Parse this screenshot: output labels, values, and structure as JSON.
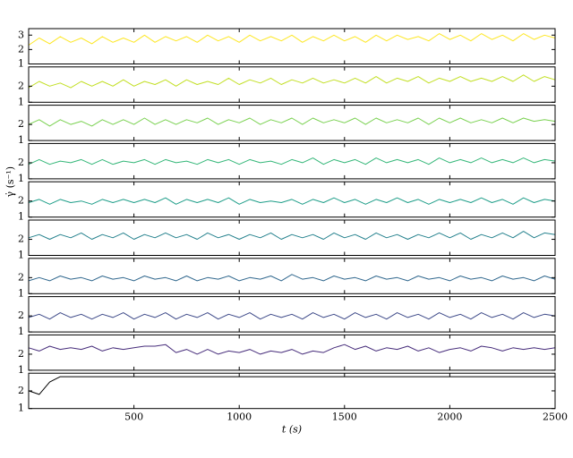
{
  "chart_data": [
    {
      "type": "line",
      "color": "#fde725",
      "xlim": [
        0,
        2500
      ],
      "ylim": [
        1,
        3.45
      ],
      "yticks": [
        1,
        2,
        3
      ],
      "x": [
        0,
        50,
        100,
        150,
        200,
        250,
        300,
        350,
        400,
        450,
        500,
        550,
        600,
        650,
        700,
        750,
        800,
        850,
        900,
        950,
        1000,
        1050,
        1100,
        1150,
        1200,
        1250,
        1300,
        1350,
        1400,
        1450,
        1500,
        1550,
        1600,
        1650,
        1700,
        1750,
        1800,
        1850,
        1900,
        1950,
        2000,
        2050,
        2100,
        2150,
        2200,
        2250,
        2300,
        2350,
        2400,
        2450,
        2500
      ],
      "values": [
        2.3,
        2.8,
        2.4,
        2.9,
        2.5,
        2.8,
        2.4,
        2.9,
        2.5,
        2.8,
        2.5,
        3.0,
        2.5,
        2.9,
        2.6,
        2.9,
        2.5,
        3.0,
        2.6,
        2.9,
        2.5,
        3.0,
        2.6,
        2.9,
        2.6,
        3.0,
        2.5,
        2.9,
        2.6,
        3.0,
        2.6,
        2.9,
        2.5,
        3.0,
        2.6,
        3.0,
        2.7,
        2.9,
        2.6,
        3.1,
        2.7,
        3.0,
        2.6,
        3.1,
        2.7,
        3.0,
        2.6,
        3.1,
        2.7,
        3.0,
        2.8
      ]
    },
    {
      "type": "line",
      "color": "#c2df23",
      "xlim": [
        0,
        2500
      ],
      "ylim": [
        1,
        3.2
      ],
      "yticks": [
        1,
        2
      ],
      "x": [
        0,
        50,
        100,
        150,
        200,
        250,
        300,
        350,
        400,
        450,
        500,
        550,
        600,
        650,
        700,
        750,
        800,
        850,
        900,
        950,
        1000,
        1050,
        1100,
        1150,
        1200,
        1250,
        1300,
        1350,
        1400,
        1450,
        1500,
        1550,
        1600,
        1650,
        1700,
        1750,
        1800,
        1850,
        1900,
        1950,
        2000,
        2050,
        2100,
        2150,
        2200,
        2250,
        2300,
        2350,
        2400,
        2450,
        2500
      ],
      "values": [
        1.9,
        2.3,
        2.0,
        2.2,
        1.9,
        2.3,
        2.0,
        2.3,
        2.0,
        2.4,
        2.0,
        2.3,
        2.1,
        2.4,
        2.0,
        2.4,
        2.1,
        2.3,
        2.1,
        2.5,
        2.1,
        2.4,
        2.2,
        2.5,
        2.1,
        2.4,
        2.2,
        2.5,
        2.2,
        2.4,
        2.2,
        2.5,
        2.2,
        2.6,
        2.2,
        2.5,
        2.3,
        2.6,
        2.2,
        2.5,
        2.3,
        2.6,
        2.3,
        2.5,
        2.3,
        2.6,
        2.3,
        2.7,
        2.3,
        2.6,
        2.4
      ]
    },
    {
      "type": "line",
      "color": "#7ad151",
      "xlim": [
        0,
        2500
      ],
      "ylim": [
        1,
        3.2
      ],
      "yticks": [
        1,
        2
      ],
      "x": [
        0,
        50,
        100,
        150,
        200,
        250,
        300,
        350,
        400,
        450,
        500,
        550,
        600,
        650,
        700,
        750,
        800,
        850,
        900,
        950,
        1000,
        1050,
        1100,
        1150,
        1200,
        1250,
        1300,
        1350,
        1400,
        1450,
        1500,
        1550,
        1600,
        1650,
        1700,
        1750,
        1800,
        1850,
        1900,
        1950,
        2000,
        2050,
        2100,
        2150,
        2200,
        2250,
        2300,
        2350,
        2400,
        2450,
        2500
      ],
      "values": [
        2.0,
        2.3,
        1.9,
        2.3,
        2.0,
        2.2,
        1.9,
        2.3,
        2.0,
        2.3,
        2.0,
        2.4,
        2.0,
        2.3,
        2.0,
        2.3,
        2.1,
        2.4,
        2.0,
        2.3,
        2.1,
        2.4,
        2.0,
        2.3,
        2.1,
        2.4,
        2.0,
        2.4,
        2.1,
        2.3,
        2.1,
        2.4,
        2.0,
        2.4,
        2.1,
        2.3,
        2.1,
        2.4,
        2.0,
        2.4,
        2.1,
        2.4,
        2.1,
        2.3,
        2.1,
        2.4,
        2.1,
        2.4,
        2.2,
        2.3,
        2.2
      ]
    },
    {
      "type": "line",
      "color": "#35b779",
      "xlim": [
        0,
        2500
      ],
      "ylim": [
        1,
        3.2
      ],
      "yticks": [
        1,
        2
      ],
      "x": [
        0,
        50,
        100,
        150,
        200,
        250,
        300,
        350,
        400,
        450,
        500,
        550,
        600,
        650,
        700,
        750,
        800,
        850,
        900,
        950,
        1000,
        1050,
        1100,
        1150,
        1200,
        1250,
        1300,
        1350,
        1400,
        1450,
        1500,
        1550,
        1600,
        1650,
        1700,
        1750,
        1800,
        1850,
        1900,
        1950,
        2000,
        2050,
        2100,
        2150,
        2200,
        2250,
        2300,
        2350,
        2400,
        2450,
        2500
      ],
      "values": [
        1.9,
        2.2,
        1.9,
        2.1,
        2.0,
        2.2,
        1.9,
        2.2,
        1.9,
        2.1,
        2.0,
        2.2,
        1.9,
        2.2,
        2.0,
        2.1,
        1.9,
        2.2,
        2.0,
        2.2,
        1.9,
        2.2,
        2.0,
        2.1,
        1.9,
        2.2,
        2.0,
        2.3,
        1.9,
        2.2,
        2.0,
        2.2,
        1.9,
        2.3,
        2.0,
        2.2,
        2.0,
        2.2,
        1.9,
        2.3,
        2.0,
        2.2,
        2.0,
        2.3,
        2.0,
        2.2,
        2.0,
        2.3,
        2.0,
        2.2,
        2.1
      ]
    },
    {
      "type": "line",
      "color": "#1f9e89",
      "xlim": [
        0,
        2500
      ],
      "ylim": [
        1,
        3.2
      ],
      "yticks": [
        1,
        2
      ],
      "ylabel": "γ̇ (s⁻¹)",
      "x": [
        0,
        50,
        100,
        150,
        200,
        250,
        300,
        350,
        400,
        450,
        500,
        550,
        600,
        650,
        700,
        750,
        800,
        850,
        900,
        950,
        1000,
        1050,
        1100,
        1150,
        1200,
        1250,
        1300,
        1350,
        1400,
        1450,
        1500,
        1550,
        1600,
        1650,
        1700,
        1750,
        1800,
        1850,
        1900,
        1950,
        2000,
        2050,
        2100,
        2150,
        2200,
        2250,
        2300,
        2350,
        2400,
        2450,
        2500
      ],
      "values": [
        1.9,
        2.1,
        1.8,
        2.1,
        1.9,
        2.0,
        1.8,
        2.1,
        1.9,
        2.1,
        1.9,
        2.1,
        1.9,
        2.2,
        1.8,
        2.1,
        1.9,
        2.1,
        1.9,
        2.2,
        1.8,
        2.1,
        1.9,
        2.0,
        1.9,
        2.1,
        1.8,
        2.1,
        1.9,
        2.2,
        1.9,
        2.1,
        1.8,
        2.1,
        1.9,
        2.2,
        1.9,
        2.1,
        1.8,
        2.1,
        1.9,
        2.1,
        1.9,
        2.2,
        1.9,
        2.1,
        1.8,
        2.2,
        1.9,
        2.1,
        2.0
      ]
    },
    {
      "type": "line",
      "color": "#26828e",
      "xlim": [
        0,
        2500
      ],
      "ylim": [
        1,
        3.2
      ],
      "yticks": [
        1,
        2
      ],
      "x": [
        0,
        50,
        100,
        150,
        200,
        250,
        300,
        350,
        400,
        450,
        500,
        550,
        600,
        650,
        700,
        750,
        800,
        850,
        900,
        950,
        1000,
        1050,
        1100,
        1150,
        1200,
        1250,
        1300,
        1350,
        1400,
        1450,
        1500,
        1550,
        1600,
        1650,
        1700,
        1750,
        1800,
        1850,
        1900,
        1950,
        2000,
        2050,
        2100,
        2150,
        2200,
        2250,
        2300,
        2350,
        2400,
        2450,
        2500
      ],
      "values": [
        2.1,
        2.3,
        2.0,
        2.3,
        2.1,
        2.4,
        2.0,
        2.3,
        2.1,
        2.4,
        2.0,
        2.3,
        2.1,
        2.4,
        2.1,
        2.3,
        2.0,
        2.4,
        2.1,
        2.3,
        2.0,
        2.3,
        2.1,
        2.4,
        2.0,
        2.3,
        2.1,
        2.3,
        2.0,
        2.4,
        2.1,
        2.3,
        2.0,
        2.4,
        2.1,
        2.3,
        2.0,
        2.3,
        2.1,
        2.4,
        2.1,
        2.4,
        2.0,
        2.3,
        2.1,
        2.4,
        2.1,
        2.5,
        2.1,
        2.4,
        2.3
      ]
    },
    {
      "type": "line",
      "color": "#31688e",
      "xlim": [
        0,
        2500
      ],
      "ylim": [
        1,
        3.2
      ],
      "yticks": [
        1,
        2
      ],
      "x": [
        0,
        50,
        100,
        150,
        200,
        250,
        300,
        350,
        400,
        450,
        500,
        550,
        600,
        650,
        700,
        750,
        800,
        850,
        900,
        950,
        1000,
        1050,
        1100,
        1150,
        1200,
        1250,
        1300,
        1350,
        1400,
        1450,
        1500,
        1550,
        1600,
        1650,
        1700,
        1750,
        1800,
        1850,
        1900,
        1950,
        2000,
        2050,
        2100,
        2150,
        2200,
        2250,
        2300,
        2350,
        2400,
        2450,
        2500
      ],
      "values": [
        1.8,
        2.0,
        1.8,
        2.1,
        1.9,
        2.0,
        1.8,
        2.1,
        1.9,
        2.0,
        1.8,
        2.1,
        1.9,
        2.0,
        1.8,
        2.1,
        1.8,
        2.0,
        1.9,
        2.1,
        1.8,
        2.0,
        1.9,
        2.1,
        1.8,
        2.2,
        1.9,
        2.0,
        1.8,
        2.1,
        1.9,
        2.0,
        1.8,
        2.1,
        1.9,
        2.0,
        1.8,
        2.1,
        1.9,
        2.0,
        1.8,
        2.1,
        1.9,
        2.0,
        1.8,
        2.1,
        1.9,
        2.0,
        1.8,
        2.1,
        1.9
      ]
    },
    {
      "type": "line",
      "color": "#3e4a89",
      "xlim": [
        0,
        2500
      ],
      "ylim": [
        1,
        3.2
      ],
      "yticks": [
        1,
        2
      ],
      "x": [
        0,
        50,
        100,
        150,
        200,
        250,
        300,
        350,
        400,
        450,
        500,
        550,
        600,
        650,
        700,
        750,
        800,
        850,
        900,
        950,
        1000,
        1050,
        1100,
        1150,
        1200,
        1250,
        1300,
        1350,
        1400,
        1450,
        1500,
        1550,
        1600,
        1650,
        1700,
        1750,
        1800,
        1850,
        1900,
        1950,
        2000,
        2050,
        2100,
        2150,
        2200,
        2250,
        2300,
        2350,
        2400,
        2450,
        2500
      ],
      "values": [
        1.9,
        2.1,
        1.8,
        2.2,
        1.9,
        2.1,
        1.8,
        2.1,
        1.9,
        2.2,
        1.8,
        2.1,
        1.9,
        2.2,
        1.8,
        2.1,
        1.9,
        2.2,
        1.8,
        2.1,
        1.9,
        2.2,
        1.8,
        2.1,
        1.9,
        2.1,
        1.8,
        2.2,
        1.9,
        2.1,
        1.8,
        2.2,
        1.9,
        2.1,
        1.8,
        2.2,
        1.9,
        2.1,
        1.8,
        2.2,
        1.9,
        2.1,
        1.8,
        2.2,
        1.9,
        2.1,
        1.8,
        2.2,
        1.9,
        2.1,
        2.0
      ]
    },
    {
      "type": "line",
      "color": "#472d7b",
      "xlim": [
        0,
        2500
      ],
      "ylim": [
        1,
        3.2
      ],
      "yticks": [
        1,
        2
      ],
      "x": [
        0,
        50,
        100,
        150,
        200,
        250,
        300,
        350,
        400,
        450,
        500,
        550,
        600,
        650,
        700,
        750,
        800,
        850,
        900,
        950,
        1000,
        1050,
        1100,
        1150,
        1200,
        1250,
        1300,
        1350,
        1400,
        1450,
        1500,
        1550,
        1600,
        1650,
        1700,
        1750,
        1800,
        1850,
        1900,
        1950,
        2000,
        2050,
        2100,
        2150,
        2200,
        2250,
        2300,
        2350,
        2400,
        2450,
        2500
      ],
      "values": [
        2.4,
        2.2,
        2.5,
        2.3,
        2.4,
        2.3,
        2.5,
        2.2,
        2.4,
        2.3,
        2.4,
        2.5,
        2.5,
        2.6,
        2.1,
        2.3,
        2.0,
        2.3,
        2.0,
        2.2,
        2.1,
        2.3,
        2.0,
        2.2,
        2.1,
        2.3,
        2.0,
        2.2,
        2.1,
        2.4,
        2.6,
        2.3,
        2.5,
        2.2,
        2.4,
        2.3,
        2.5,
        2.2,
        2.4,
        2.1,
        2.3,
        2.4,
        2.2,
        2.5,
        2.4,
        2.2,
        2.4,
        2.3,
        2.4,
        2.3,
        2.4
      ]
    },
    {
      "type": "line",
      "color": "#000000",
      "xlim": [
        0,
        2500
      ],
      "ylim": [
        1,
        3
      ],
      "yticks": [
        1,
        2
      ],
      "xticks": [
        500,
        1000,
        1500,
        2000,
        2500
      ],
      "xlabel": "t (s)",
      "x": [
        0,
        50,
        100,
        150,
        200,
        250,
        300,
        350,
        400,
        450,
        500,
        550,
        600,
        650,
        700,
        750,
        800,
        850,
        900,
        950,
        1000,
        1050,
        1100,
        1150,
        1200,
        1250,
        1300,
        1350,
        1400,
        1450,
        1500,
        1550,
        1600,
        1650,
        1700,
        1750,
        1800,
        1850,
        1900,
        1950,
        2000,
        2050,
        2100,
        2150,
        2200,
        2250,
        2300,
        2350,
        2400,
        2450,
        2500
      ],
      "values": [
        2.0,
        1.8,
        2.5,
        2.8,
        2.8,
        2.8,
        2.8,
        2.8,
        2.8,
        2.8,
        2.8,
        2.8,
        2.8,
        2.8,
        2.8,
        2.8,
        2.8,
        2.8,
        2.8,
        2.8,
        2.8,
        2.8,
        2.8,
        2.8,
        2.8,
        2.8,
        2.8,
        2.8,
        2.8,
        2.8,
        2.8,
        2.8,
        2.8,
        2.8,
        2.8,
        2.8,
        2.8,
        2.8,
        2.8,
        2.8,
        2.8,
        2.8,
        2.8,
        2.8,
        2.8,
        2.8,
        2.8,
        2.8,
        2.8,
        2.8,
        2.8
      ]
    }
  ]
}
